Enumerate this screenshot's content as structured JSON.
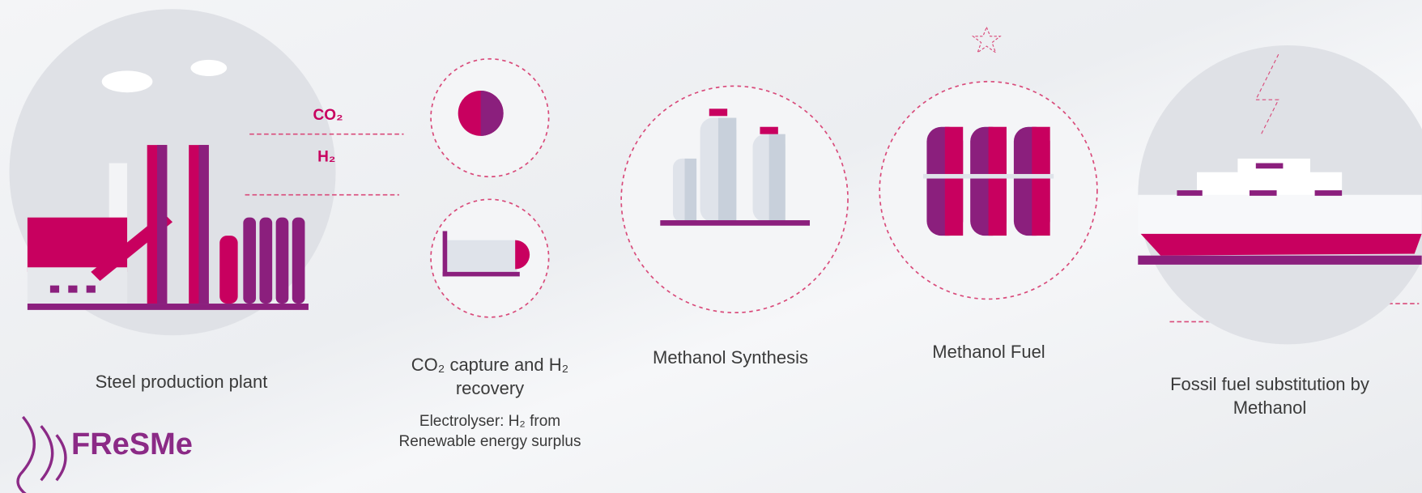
{
  "flow_labels": [
    "CO₂",
    "H₂"
  ],
  "steps": [
    {
      "label": "Steel production plant"
    },
    {
      "label": "CO₂ capture and H₂ recovery",
      "sublabel": "Electrolyser: H₂ from Renewable energy surplus"
    },
    {
      "label": "Methanol Synthesis"
    },
    {
      "label": "Methanol Fuel"
    },
    {
      "label": "Fossil fuel substitution by Methanol"
    }
  ],
  "logo": "FReSMe"
}
